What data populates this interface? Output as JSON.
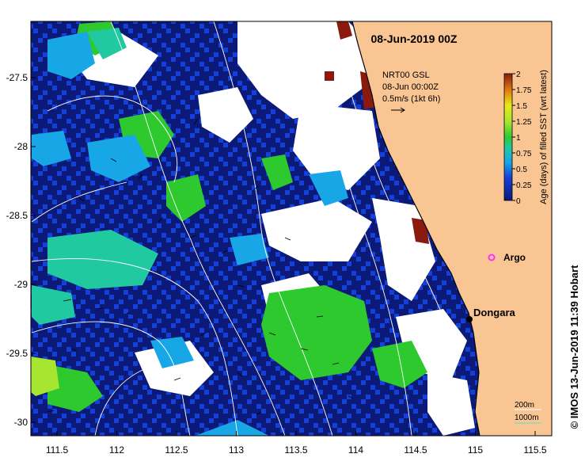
{
  "map": {
    "title": "08-Jun-2019 00Z",
    "current_info": {
      "line1": "NRT00 GSL",
      "line2": "08-Jun 00:00Z",
      "line3": "0.5m/s (1kt 6h)"
    },
    "x_ticks": [
      "111.5",
      "112",
      "112.5",
      "113",
      "113.5",
      "114",
      "114.5",
      "115",
      "115.5"
    ],
    "y_ticks": [
      "-27.5",
      "-28",
      "-28.5",
      "-29",
      "-29.5",
      "-30"
    ],
    "colorbar": {
      "ticks": [
        "2",
        "1.75",
        "1.5",
        "1.25",
        "1",
        "0.75",
        "0.5",
        "0.25",
        "0"
      ],
      "label": "Age (days) of filled SST (wrt latest)"
    },
    "places": [
      {
        "name": "Argo",
        "lon": 115.13,
        "lat": -28.81
      },
      {
        "name": "Dongara",
        "lon": 114.93,
        "lat": -29.25
      }
    ],
    "isobaths": {
      "line1": "200m",
      "line2": "1000m"
    },
    "credit": "© IMOS 13-Jun-2019 11:39 Hobart",
    "colors": {
      "land": "#f9c593",
      "age_0": "#0b1a78",
      "age_025": "#1540d8",
      "age_05": "#17a6e6",
      "age_075": "#20c9a0",
      "age_1": "#2ec92e",
      "age_125": "#a6e631",
      "age_15": "#e8e81a",
      "age_2": "#8a1a0e",
      "argo": "#ff30ff",
      "isobath_1000": "#5be0c8"
    }
  }
}
